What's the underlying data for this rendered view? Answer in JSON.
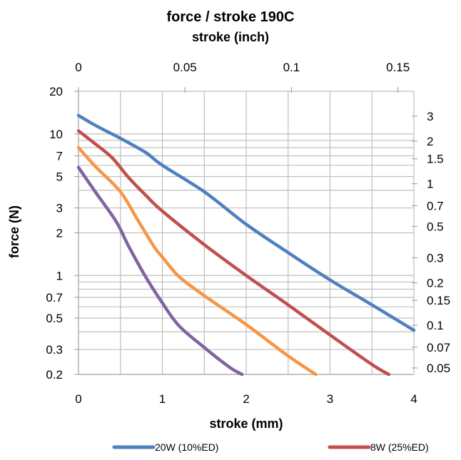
{
  "chart_data": {
    "type": "line",
    "title": "force / stroke 190C",
    "x_axis": {
      "label": "stroke (mm)",
      "range": [
        0,
        4
      ],
      "ticks": [
        "0",
        "1",
        "2",
        "3",
        "4"
      ]
    },
    "x2_axis": {
      "label": "stroke (inch)",
      "range": [
        0,
        0.1575
      ],
      "ticks": [
        {
          "value": 0,
          "label": "0"
        },
        {
          "value": 0.05,
          "label": "0.05"
        },
        {
          "value": 0.1,
          "label": "0.1"
        },
        {
          "value": 0.15,
          "label": "0.15"
        }
      ]
    },
    "y_axis": {
      "label": "force (N)",
      "scale": "log",
      "range": [
        0.2,
        20
      ],
      "ticks": [
        {
          "value": 20,
          "label": "20"
        },
        {
          "value": 10,
          "label": "10"
        },
        {
          "value": 7,
          "label": "7"
        },
        {
          "value": 5,
          "label": "5"
        },
        {
          "value": 3,
          "label": "3"
        },
        {
          "value": 2,
          "label": "2"
        },
        {
          "value": 1,
          "label": "1"
        },
        {
          "value": 0.7,
          "label": "0.7"
        },
        {
          "value": 0.5,
          "label": "0.5"
        },
        {
          "value": 0.3,
          "label": "0.3"
        },
        {
          "value": 0.2,
          "label": "0.2"
        }
      ],
      "gridlines": [
        20,
        10,
        9,
        8,
        7,
        6,
        5,
        4,
        3,
        2,
        1,
        0.9,
        0.8,
        0.7,
        0.6,
        0.5,
        0.4,
        0.3,
        0.2
      ]
    },
    "y2_axis": {
      "scale": "log",
      "range": [
        0.045,
        4.5
      ],
      "ticks": [
        {
          "value": 3,
          "label": "3"
        },
        {
          "value": 2,
          "label": "2"
        },
        {
          "value": 1.5,
          "label": "1.5"
        },
        {
          "value": 1,
          "label": "1"
        },
        {
          "value": 0.7,
          "label": "0.7"
        },
        {
          "value": 0.5,
          "label": "0.5"
        },
        {
          "value": 0.3,
          "label": "0.3"
        },
        {
          "value": 0.2,
          "label": "0.2"
        },
        {
          "value": 0.15,
          "label": "0.15"
        },
        {
          "value": 0.1,
          "label": "0.1"
        },
        {
          "value": 0.07,
          "label": "0.07"
        },
        {
          "value": 0.05,
          "label": "0.05"
        }
      ]
    },
    "grid": true,
    "legend_position": "bottom",
    "series": [
      {
        "name": "20W (10%ED)",
        "color": "#4F81BD",
        "x": [
          0,
          0.2,
          0.5,
          0.8,
          1.0,
          1.5,
          2.0,
          2.5,
          3.0,
          3.5,
          4.0
        ],
        "y": [
          13.5,
          11.5,
          9.3,
          7.4,
          6.0,
          3.9,
          2.3,
          1.45,
          0.93,
          0.62,
          0.41
        ]
      },
      {
        "name": "8W (25%ED)",
        "color": "#C0504D",
        "x": [
          0,
          0.2,
          0.4,
          0.6,
          0.8,
          1.0,
          1.5,
          2.0,
          2.5,
          3.0,
          3.5,
          3.7
        ],
        "y": [
          10.5,
          8.5,
          6.8,
          4.9,
          3.7,
          2.85,
          1.65,
          1.0,
          0.62,
          0.38,
          0.235,
          0.2
        ]
      },
      {
        "name": "",
        "color": "#F79646",
        "x": [
          0,
          0.2,
          0.5,
          0.7,
          0.9,
          1.0,
          1.2,
          1.5,
          2.0,
          2.5,
          2.83
        ],
        "y": [
          8.0,
          5.9,
          3.9,
          2.5,
          1.6,
          1.35,
          0.98,
          0.72,
          0.45,
          0.27,
          0.2
        ]
      },
      {
        "name": "",
        "color": "#8064A2",
        "x": [
          0,
          0.2,
          0.45,
          0.6,
          0.8,
          1.0,
          1.2,
          1.5,
          1.8,
          1.95
        ],
        "y": [
          5.8,
          3.9,
          2.4,
          1.6,
          0.98,
          0.64,
          0.44,
          0.31,
          0.225,
          0.2
        ]
      }
    ]
  }
}
